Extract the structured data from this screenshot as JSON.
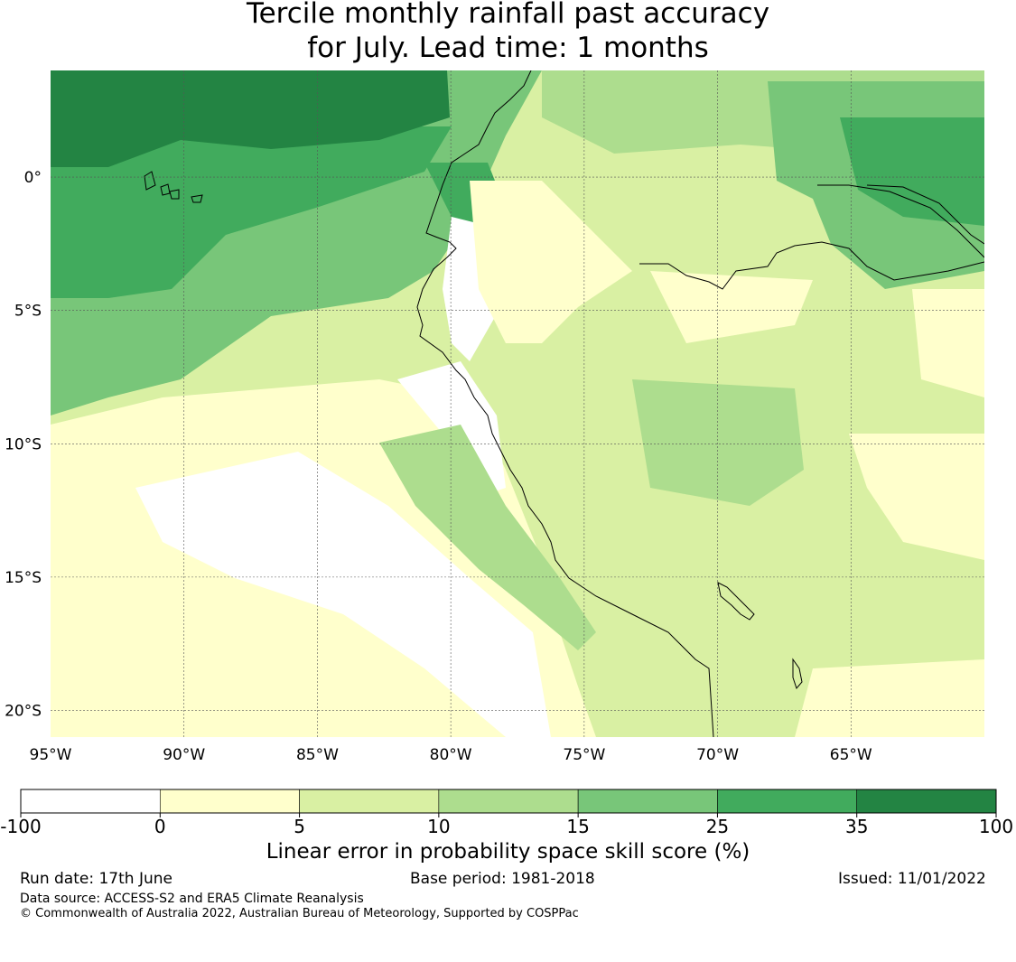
{
  "title": {
    "line1": "Tercile monthly rainfall past accuracy",
    "line2": "for July. Lead time: 1 months"
  },
  "map": {
    "lon_range": [
      -95,
      -60
    ],
    "lat_range": [
      -21,
      4
    ],
    "lon_ticks": [
      {
        "value": -95,
        "label": "95°W"
      },
      {
        "value": -90,
        "label": "90°W"
      },
      {
        "value": -85,
        "label": "85°W"
      },
      {
        "value": -80,
        "label": "80°W"
      },
      {
        "value": -75,
        "label": "75°W"
      },
      {
        "value": -70,
        "label": "70°W"
      },
      {
        "value": -65,
        "label": "65°W"
      }
    ],
    "lat_ticks": [
      {
        "value": 0,
        "label": "0°"
      },
      {
        "value": -5,
        "label": "5°S"
      },
      {
        "value": -10,
        "label": "10°S"
      },
      {
        "value": -15,
        "label": "15°S"
      },
      {
        "value": -20,
        "label": "20°S"
      }
    ],
    "gridlines": true
  },
  "colorbar": {
    "ticks": [
      "-100",
      "0",
      "5",
      "10",
      "15",
      "25",
      "35",
      "100"
    ],
    "colors": [
      "#ffffff",
      "#ffffcc",
      "#d9f0a3",
      "#addd8e",
      "#78c679",
      "#41ab5d",
      "#238443"
    ],
    "label": "Linear error in probability space skill score (%)"
  },
  "footer": {
    "run_date": "Run date: 17th June",
    "base_period": "Base period: 1981-2018",
    "issued": "Issued: 11/01/2022",
    "data_source": "Data source: ACCESS-S2 and ERA5 Climate Reanalysis",
    "copyright": "© Commonwealth of Australia 2022, Australian Bureau of Meteorology, Supported by COSPPac"
  }
}
